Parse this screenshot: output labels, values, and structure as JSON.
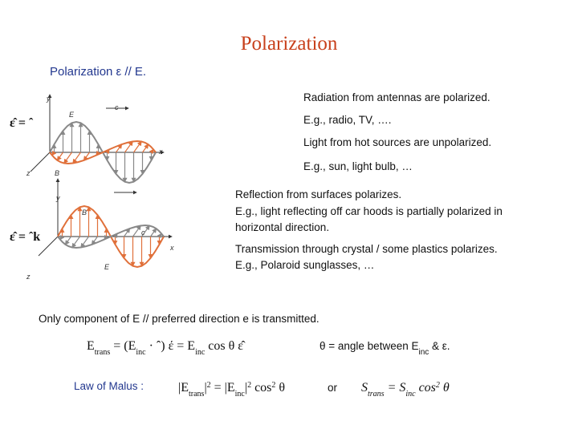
{
  "title": "Polarization",
  "subtitle": "Polarization  ε  //  E.",
  "figures": [
    {
      "label": "ε̂ = ˆ",
      "axes": [
        "y",
        "E",
        "c",
        "x",
        "z",
        "B"
      ]
    },
    {
      "label": "ε̂ = ˆk",
      "axes": [
        "y",
        "B",
        "c",
        "x",
        "z",
        "E"
      ]
    }
  ],
  "notes": [
    "Radiation from antennas are polarized.",
    "E.g.,  radio, TV, ….",
    "Light from hot sources are unpolarized.",
    "E.g., sun, light bulb, …"
  ],
  "reflection": [
    "Reflection from surfaces polarizes.",
    "E.g.,  light reflecting off car hoods is partially polarized in",
    "horizontal direction."
  ],
  "transmission": [
    "Transmission through crystal  / some plastics polarizes.",
    "E.g.,  Polaroid sunglasses, …"
  ],
  "statement": "Only component of E // preferred direction e is transmitted.",
  "equation": [
    {
      "text": "E"
    },
    {
      "text": "trans",
      "pos": "sub"
    },
    {
      "text": " = (E"
    },
    {
      "text": "inc",
      "pos": "sub"
    },
    {
      "text": " · ˆ)  έ = E"
    },
    {
      "text": "inc",
      "pos": "sub"
    },
    {
      "text": " cos θ  ε̂"
    }
  ],
  "angle_note": [
    {
      "text": "θ = angle between E"
    },
    {
      "text": "inc",
      "pos": "sub"
    },
    {
      "text": " & ε."
    }
  ],
  "malus_label": "Law of Malus :",
  "malus": [
    {
      "text": "|E"
    },
    {
      "text": "trans",
      "pos": "sub"
    },
    {
      "text": "|"
    },
    {
      "text": "2",
      "pos": "sup"
    },
    {
      "text": " = |E"
    },
    {
      "text": "inc",
      "pos": "sub"
    },
    {
      "text": "|"
    },
    {
      "text": "2",
      "pos": "sup"
    },
    {
      "text": " cos"
    },
    {
      "text": "2",
      "pos": "sup"
    },
    {
      "text": " θ"
    }
  ],
  "or": "or",
  "intensity": [
    {
      "text": "S"
    },
    {
      "text": "trans",
      "pos": "sub"
    },
    {
      "text": " = S"
    },
    {
      "text": "inc",
      "pos": "sub"
    },
    {
      "text": " cos"
    },
    {
      "text": "2",
      "pos": "sup"
    },
    {
      "text": " θ"
    }
  ]
}
